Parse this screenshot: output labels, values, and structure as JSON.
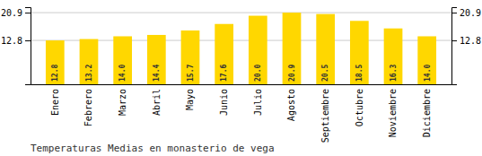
{
  "chart_data": {
    "type": "bar",
    "title": "Temperaturas Medias en monasterio de vega",
    "categories": [
      "Enero",
      "Febrero",
      "Marzo",
      "Abril",
      "Mayo",
      "Junio",
      "Julio",
      "Agosto",
      "Septiembre",
      "Octubre",
      "Noviembre",
      "Diciembre"
    ],
    "values": [
      12.8,
      13.2,
      14.0,
      14.4,
      15.7,
      17.6,
      20.0,
      20.9,
      20.5,
      18.5,
      16.3,
      14.0
    ],
    "value_labels": [
      "12.8",
      "13.2",
      "14.0",
      "14.4",
      "15.7",
      "17.6",
      "20.0",
      "20.9",
      "20.5",
      "18.5",
      "16.3",
      "14.0"
    ],
    "data_labels": true,
    "color": "#FFD700",
    "ylim": [
      0,
      22.5
    ],
    "yticks": [
      12.8,
      20.9
    ],
    "grid": true
  }
}
